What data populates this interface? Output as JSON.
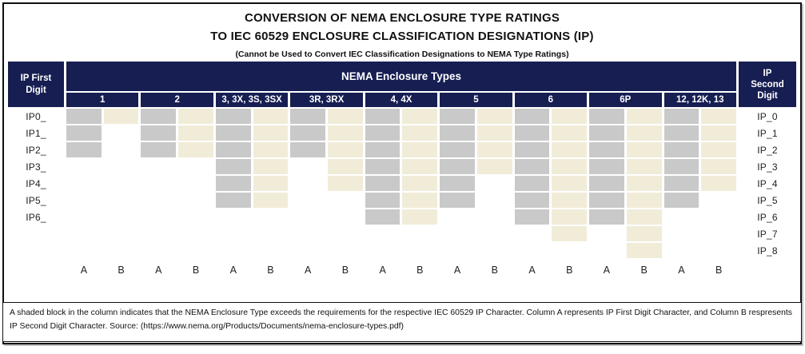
{
  "title": {
    "line1": "CONVERSION OF NEMA ENCLOSURE TYPE RATINGS",
    "line2": "TO IEC 60529 ENCLOSURE CLASSIFICATION DESIGNATIONS (IP)",
    "subtitle": "(Cannot be Used to Convert IEC Classification Designations to NEMA Type Ratings)"
  },
  "header": {
    "left_label_lines": [
      "IP First",
      "Digit"
    ],
    "banner": "NEMA Enclosure Types",
    "right_label_lines": [
      "IP",
      "Second",
      "Digit"
    ]
  },
  "row_labels_left": [
    "IP0_",
    "IP1_",
    "IP2_",
    "IP3_",
    "IP4_",
    "IP5_",
    "IP6_"
  ],
  "row_labels_right": [
    "IP_0",
    "IP_1",
    "IP_2",
    "IP_3",
    "IP_4",
    "IP_5",
    "IP_6",
    "IP_7",
    "IP_8"
  ],
  "sub_column_labels": [
    "A",
    "B"
  ],
  "column_groups": [
    {
      "label": "1",
      "a_shaded": 3,
      "b_shaded": 1
    },
    {
      "label": "2",
      "a_shaded": 3,
      "b_shaded": 3
    },
    {
      "label": "3, 3X, 3S, 3SX",
      "a_shaded": 6,
      "b_shaded": 6
    },
    {
      "label": "3R, 3RX",
      "a_shaded": 3,
      "b_shaded": 5
    },
    {
      "label": "4, 4X",
      "a_shaded": 7,
      "b_shaded": 7
    },
    {
      "label": "5",
      "a_shaded": 6,
      "b_shaded": 4
    },
    {
      "label": "6",
      "a_shaded": 7,
      "b_shaded": 8
    },
    {
      "label": "6P",
      "a_shaded": 7,
      "b_shaded": 9
    },
    {
      "label": "12, 12K, 13",
      "a_shaded": 6,
      "b_shaded": 5
    }
  ],
  "footnote": "A shaded block in the column indicates that the NEMA Enclosure Type exceeds the requirements for the respective IEC 60529 IP Character. Column A represents IP First Digit Character, and Column B respresents IP Second Digit Character. Source: (https://www.nema.org/Products/Documents/nema-enclosure-types.pdf)",
  "colors": {
    "navy": "#161e52",
    "a_cell_gray": "#c9c9c9",
    "b_cell_cream": "#f1ecd8"
  },
  "chart_data": {
    "type": "heatmap",
    "title": "CONVERSION OF NEMA ENCLOSURE TYPE RATINGS TO IEC 60529 ENCLOSURE CLASSIFICATION DESIGNATIONS (IP)",
    "subtitle": "(Cannot be Used to Convert IEC Classification Designations to NEMA Type Ratings)",
    "columns": [
      "1",
      "2",
      "3, 3X, 3S, 3SX",
      "3R, 3RX",
      "4, 4X",
      "5",
      "6",
      "6P",
      "12, 12K, 13"
    ],
    "sub_columns_per_type": [
      "A = IP First Digit Character",
      "B = IP Second Digit Character"
    ],
    "rows_first_digit": [
      "IP0_",
      "IP1_",
      "IP2_",
      "IP3_",
      "IP4_",
      "IP5_",
      "IP6_"
    ],
    "rows_second_digit": [
      "IP_0",
      "IP_1",
      "IP_2",
      "IP_3",
      "IP_4",
      "IP_5",
      "IP_6",
      "IP_7",
      "IP_8"
    ],
    "series": [
      {
        "column": "1",
        "A_shaded": [
          "IP0_",
          "IP1_",
          "IP2_"
        ],
        "B_shaded": [
          "IP_0"
        ]
      },
      {
        "column": "2",
        "A_shaded": [
          "IP0_",
          "IP1_",
          "IP2_"
        ],
        "B_shaded": [
          "IP_0",
          "IP_1",
          "IP_2"
        ]
      },
      {
        "column": "3, 3X, 3S, 3SX",
        "A_shaded": [
          "IP0_",
          "IP1_",
          "IP2_",
          "IP3_",
          "IP4_",
          "IP5_"
        ],
        "B_shaded": [
          "IP_0",
          "IP_1",
          "IP_2",
          "IP_3",
          "IP_4",
          "IP_5"
        ]
      },
      {
        "column": "3R, 3RX",
        "A_shaded": [
          "IP0_",
          "IP1_",
          "IP2_"
        ],
        "B_shaded": [
          "IP_0",
          "IP_1",
          "IP_2",
          "IP_3",
          "IP_4"
        ]
      },
      {
        "column": "4, 4X",
        "A_shaded": [
          "IP0_",
          "IP1_",
          "IP2_",
          "IP3_",
          "IP4_",
          "IP5_",
          "IP6_"
        ],
        "B_shaded": [
          "IP_0",
          "IP_1",
          "IP_2",
          "IP_3",
          "IP_4",
          "IP_5",
          "IP_6"
        ]
      },
      {
        "column": "5",
        "A_shaded": [
          "IP0_",
          "IP1_",
          "IP2_",
          "IP3_",
          "IP4_",
          "IP5_"
        ],
        "B_shaded": [
          "IP_0",
          "IP_1",
          "IP_2",
          "IP_3"
        ]
      },
      {
        "column": "6",
        "A_shaded": [
          "IP0_",
          "IP1_",
          "IP2_",
          "IP3_",
          "IP4_",
          "IP5_",
          "IP6_"
        ],
        "B_shaded": [
          "IP_0",
          "IP_1",
          "IP_2",
          "IP_3",
          "IP_4",
          "IP_5",
          "IP_6",
          "IP_7"
        ]
      },
      {
        "column": "6P",
        "A_shaded": [
          "IP0_",
          "IP1_",
          "IP2_",
          "IP3_",
          "IP4_",
          "IP5_",
          "IP6_"
        ],
        "B_shaded": [
          "IP_0",
          "IP_1",
          "IP_2",
          "IP_3",
          "IP_4",
          "IP_5",
          "IP_6",
          "IP_7",
          "IP_8"
        ]
      },
      {
        "column": "12, 12K, 13",
        "A_shaded": [
          "IP0_",
          "IP1_",
          "IP2_",
          "IP3_",
          "IP4_",
          "IP5_"
        ],
        "B_shaded": [
          "IP_0",
          "IP_1",
          "IP_2",
          "IP_3",
          "IP_4"
        ]
      }
    ],
    "legend_note": "Shaded block = NEMA Enclosure Type exceeds the requirements for the respective IEC 60529 IP Character",
    "cell_colors": {
      "A": "#c9c9c9",
      "B": "#f1ecd8"
    }
  }
}
